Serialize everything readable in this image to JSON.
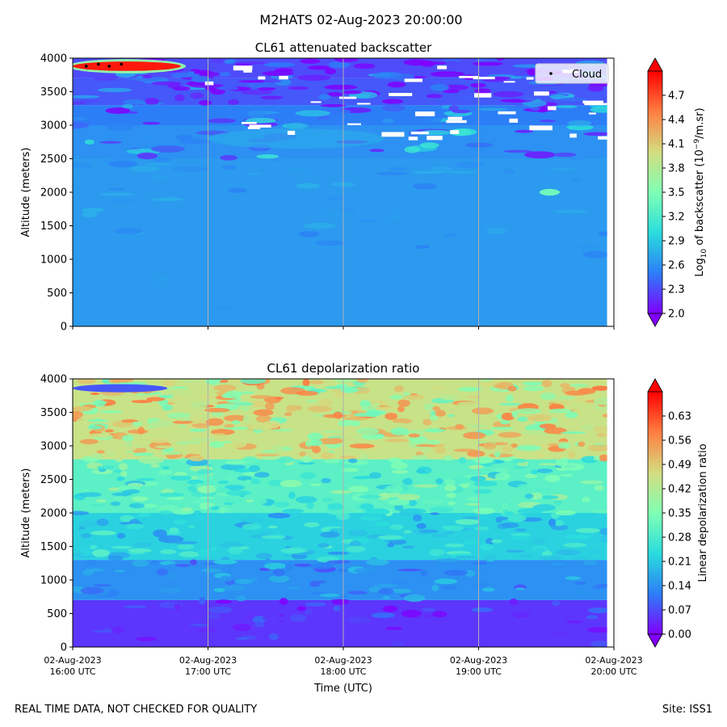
{
  "figure": {
    "suptitle": "M2HATS 02-Aug-2023 20:00:00",
    "footer_left": "REAL TIME DATA, NOT CHECKED FOR QUALITY",
    "footer_right": "Site: ISS1"
  },
  "chart_data": [
    {
      "type": "heatmap",
      "title": "CL61 attenuated backscatter",
      "ylabel": "Altitude (meters)",
      "xlabel": "",
      "ylim": [
        0,
        4000
      ],
      "yticks": [
        0,
        500,
        1000,
        1500,
        2000,
        2500,
        3000,
        3500,
        4000
      ],
      "xlim_hours": [
        16,
        20
      ],
      "xticks": [
        {
          "hour": 16,
          "line1": "02-Aug-2023",
          "line2": "16:00 UTC"
        },
        {
          "hour": 17,
          "line1": "02-Aug-2023",
          "line2": "17:00 UTC"
        },
        {
          "hour": 18,
          "line1": "02-Aug-2023",
          "line2": "18:00 UTC"
        },
        {
          "hour": 19,
          "line1": "02-Aug-2023",
          "line2": "19:00 UTC"
        },
        {
          "hour": 20,
          "line1": "02-Aug-2023",
          "line2": "20:00 UTC"
        }
      ],
      "show_xtick_labels": false,
      "colorbar": {
        "label": "Log10 of backscatter (10^-9/m.sr)",
        "label_main": "Log",
        "label_sub": "10",
        "label_mid": " of backscatter (10",
        "label_sup": "−9",
        "label_end": "/m.sr)",
        "range": [
          2.0,
          5.0
        ],
        "ticks": [
          "2.0",
          "2.3",
          "2.6",
          "2.9",
          "3.2",
          "3.5",
          "3.8",
          "4.1",
          "4.4",
          "4.7"
        ]
      },
      "legend": {
        "entries": [
          "Cloud"
        ],
        "location": "upper right"
      },
      "cloud_points": [
        {
          "hour": 16.1,
          "alt": 3880
        },
        {
          "hour": 16.19,
          "alt": 3910
        },
        {
          "hour": 16.27,
          "alt": 3880
        },
        {
          "hour": 16.36,
          "alt": 3910
        }
      ],
      "bands": [
        {
          "alt": [
            0,
            2500
          ],
          "value": 2.65
        },
        {
          "alt": [
            2500,
            3000
          ],
          "value": 2.6
        },
        {
          "alt": [
            3000,
            3300
          ],
          "value": 2.5
        },
        {
          "alt": [
            3300,
            3700
          ],
          "value": 2.35
        },
        {
          "alt": [
            3700,
            4000
          ],
          "value": 2.3
        }
      ],
      "features": [
        {
          "hour": [
            16.0,
            16.8
          ],
          "alt": [
            3810,
            3950
          ],
          "value": 4.9,
          "label": "cloud layer"
        },
        {
          "hour": [
            17.0,
            18.3
          ],
          "alt": [
            2650,
            2950
          ],
          "value": 2.75,
          "label": "aerosol haze"
        },
        {
          "hour": [
            19.45,
            19.6
          ],
          "alt": [
            1950,
            2050
          ],
          "value": 3.4,
          "label": "isolated target"
        }
      ],
      "data_end_hour": 19.95
    },
    {
      "type": "heatmap",
      "title": "CL61 depolarization ratio",
      "ylabel": "Altitude (meters)",
      "xlabel": "Time (UTC)",
      "ylim": [
        0,
        4000
      ],
      "yticks": [
        0,
        500,
        1000,
        1500,
        2000,
        2500,
        3000,
        3500,
        4000
      ],
      "xlim_hours": [
        16,
        20
      ],
      "xticks": [
        {
          "hour": 16,
          "line1": "02-Aug-2023",
          "line2": "16:00 UTC"
        },
        {
          "hour": 17,
          "line1": "02-Aug-2023",
          "line2": "17:00 UTC"
        },
        {
          "hour": 18,
          "line1": "02-Aug-2023",
          "line2": "18:00 UTC"
        },
        {
          "hour": 19,
          "line1": "02-Aug-2023",
          "line2": "19:00 UTC"
        },
        {
          "hour": 20,
          "line1": "02-Aug-2023",
          "line2": "20:00 UTC"
        }
      ],
      "show_xtick_labels": true,
      "colorbar": {
        "label": "Linear depolarization ratio",
        "range": [
          0.0,
          0.7
        ],
        "ticks": [
          "0.00",
          "0.07",
          "0.14",
          "0.21",
          "0.28",
          "0.35",
          "0.42",
          "0.49",
          "0.56",
          "0.63"
        ]
      },
      "bands": [
        {
          "alt": [
            0,
            700
          ],
          "value": 0.05
        },
        {
          "alt": [
            700,
            1300
          ],
          "value": 0.14
        },
        {
          "alt": [
            1300,
            2000
          ],
          "value": 0.22
        },
        {
          "alt": [
            2000,
            2800
          ],
          "value": 0.3
        },
        {
          "alt": [
            2800,
            4000
          ],
          "value": 0.45
        }
      ],
      "features": [
        {
          "hour": [
            16.0,
            16.7
          ],
          "alt": [
            3800,
            3920
          ],
          "value": 0.08,
          "label": "cloud (low depol)"
        }
      ],
      "data_end_hour": 19.95
    }
  ],
  "colors": {
    "rainbow": [
      "#8000ff",
      "#2c7ef7",
      "#2adddd",
      "#80ffb4",
      "#d4dd80",
      "#ff7e41",
      "#ff0000"
    ],
    "grid": "#b0b0b0"
  }
}
